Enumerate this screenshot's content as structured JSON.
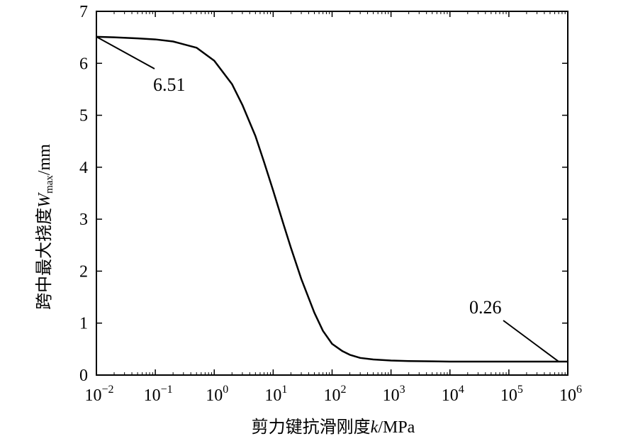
{
  "chart_data": {
    "type": "line",
    "title": "",
    "xlabel": "剪力键抗滑刚度k/MPa",
    "xlabel_parts": {
      "text": "剪力键抗滑刚度",
      "var": "k",
      "unit": "/MPa"
    },
    "ylabel": "跨中最大挠度W max/mm",
    "ylabel_parts": {
      "text": "跨中最大挠度",
      "var": "W",
      "sub": "max",
      "unit": "/mm"
    },
    "xscale": "log",
    "xlim": [
      0.01,
      1000000
    ],
    "ylim": [
      0,
      7
    ],
    "grid": false,
    "legend": "none",
    "x_ticks": [
      {
        "base": "10",
        "exp": "−2",
        "value": 0.01
      },
      {
        "base": "10",
        "exp": "−1",
        "value": 0.1
      },
      {
        "base": "10",
        "exp": "0",
        "value": 1
      },
      {
        "base": "10",
        "exp": "1",
        "value": 10
      },
      {
        "base": "10",
        "exp": "2",
        "value": 100
      },
      {
        "base": "10",
        "exp": "3",
        "value": 1000
      },
      {
        "base": "10",
        "exp": "4",
        "value": 10000
      },
      {
        "base": "10",
        "exp": "5",
        "value": 100000
      },
      {
        "base": "10",
        "exp": "6",
        "value": 1000000
      }
    ],
    "y_ticks": [
      "0",
      "1",
      "2",
      "3",
      "4",
      "5",
      "6",
      "7"
    ],
    "series": [
      {
        "color": "#000000",
        "x": [
          0.01,
          0.02,
          0.05,
          0.1,
          0.2,
          0.5,
          1,
          2,
          3,
          5,
          7,
          10,
          15,
          20,
          30,
          50,
          70,
          100,
          150,
          200,
          300,
          500,
          1000,
          2000,
          5000,
          10000,
          100000,
          1000000
        ],
        "y": [
          6.51,
          6.5,
          6.48,
          6.46,
          6.42,
          6.3,
          6.05,
          5.6,
          5.2,
          4.6,
          4.1,
          3.55,
          2.9,
          2.45,
          1.85,
          1.2,
          0.85,
          0.6,
          0.46,
          0.39,
          0.33,
          0.3,
          0.28,
          0.27,
          0.265,
          0.26,
          0.26,
          0.26
        ]
      }
    ],
    "annotations": [
      {
        "text": "6.51",
        "x": 0.01,
        "y": 6.51
      },
      {
        "text": "0.26",
        "x": 700000,
        "y": 0.26
      }
    ]
  }
}
